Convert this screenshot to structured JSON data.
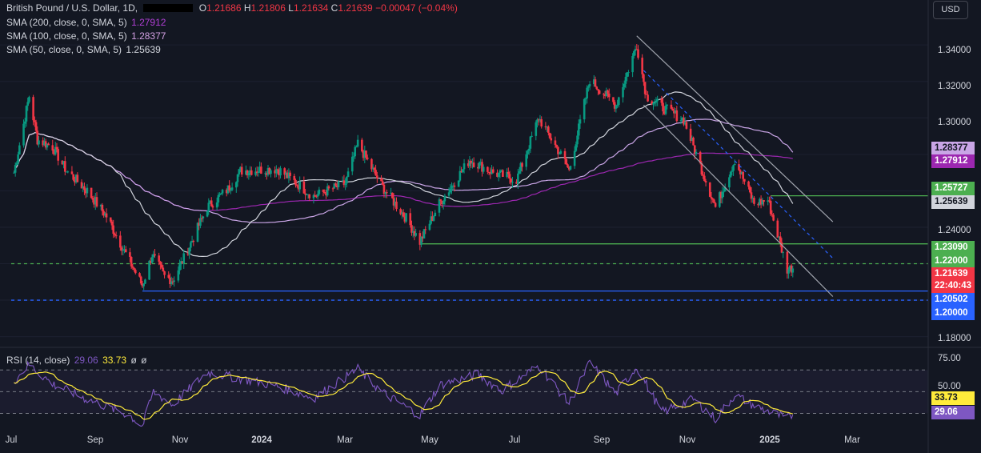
{
  "header": {
    "symbol": "British Pound / U.S. Dollar, 1D,",
    "o_label": "O",
    "o": "1.21686",
    "h_label": "H",
    "h": "1.21806",
    "l_label": "L",
    "l": "1.21634",
    "c_label": "C",
    "c": "1.21639",
    "change": "−0.00047 (−0.04%)"
  },
  "sma_legend": [
    {
      "label": "SMA (200, close, 0, SMA, 5)",
      "value": "1.27912",
      "color": "#b13fd6"
    },
    {
      "label": "SMA (100, close, 0, SMA, 5)",
      "value": "1.28377",
      "color": "#d3a0e3"
    },
    {
      "label": "SMA (50, close, 0, SMA, 5)",
      "value": "1.25639",
      "color": "#d1d4dc"
    }
  ],
  "currency_button": "USD",
  "price_axis": [
    "1.34000",
    "1.32000",
    "1.30000",
    "1.24000",
    "1.18000"
  ],
  "price_tags": [
    {
      "text": "1.28377",
      "bg": "#c9a5e6",
      "fg": "#131722"
    },
    {
      "text": "1.27912",
      "bg": "#9c27b0",
      "fg": "#ffffff"
    },
    {
      "text": "1.25727",
      "bg": "#4caf50",
      "fg": "#ffffff"
    },
    {
      "text": "1.25639",
      "bg": "#d1d4dc",
      "fg": "#131722"
    },
    {
      "text": "1.23090",
      "bg": "#4caf50",
      "fg": "#ffffff"
    },
    {
      "text": "1.22000",
      "bg": "#4caf50",
      "fg": "#ffffff"
    },
    {
      "text": "1.21639",
      "bg": "#f23645",
      "fg": "#ffffff"
    },
    {
      "text": "22:40:43",
      "bg": "#f23645",
      "fg": "#ffffff"
    },
    {
      "text": "1.20502",
      "bg": "#2962ff",
      "fg": "#ffffff"
    },
    {
      "text": "1.20000",
      "bg": "#2962ff",
      "fg": "#ffffff"
    }
  ],
  "rsi": {
    "label": "RSI (14, close)",
    "value": "29.06",
    "ma_value": "33.73",
    "extra1": "ø",
    "extra2": "ø",
    "axis": [
      "75.00",
      "50.00"
    ],
    "tags": [
      {
        "text": "33.73",
        "bg": "#ffeb3b",
        "fg": "#131722"
      },
      {
        "text": "29.06",
        "bg": "#7e57c2",
        "fg": "#ffffff"
      }
    ]
  },
  "x_axis": [
    {
      "label": "Jul",
      "bold": false
    },
    {
      "label": "Sep",
      "bold": false
    },
    {
      "label": "Nov",
      "bold": false
    },
    {
      "label": "2024",
      "bold": true
    },
    {
      "label": "Mar",
      "bold": false
    },
    {
      "label": "May",
      "bold": false
    },
    {
      "label": "Jul",
      "bold": false
    },
    {
      "label": "Sep",
      "bold": false
    },
    {
      "label": "Nov",
      "bold": false
    },
    {
      "label": "2025",
      "bold": true
    },
    {
      "label": "Mar",
      "bold": false
    }
  ],
  "chart_data": {
    "type": "candlestick",
    "pair": "GBP/USD",
    "timeframe": "1D",
    "ylim": [
      1.175,
      1.355
    ],
    "close_path": [
      [
        "2023-07-03",
        1.27
      ],
      [
        "2023-07-14",
        1.312
      ],
      [
        "2023-07-20",
        1.288
      ],
      [
        "2023-07-31",
        1.284
      ],
      [
        "2023-08-10",
        1.271
      ],
      [
        "2023-08-25",
        1.26
      ],
      [
        "2023-09-08",
        1.246
      ],
      [
        "2023-09-25",
        1.221
      ],
      [
        "2023-10-04",
        1.208
      ],
      [
        "2023-10-11",
        1.225
      ],
      [
        "2023-10-20",
        1.213
      ],
      [
        "2023-10-26",
        1.211
      ],
      [
        "2023-11-03",
        1.223
      ],
      [
        "2023-11-20",
        1.251
      ],
      [
        "2023-12-05",
        1.261
      ],
      [
        "2023-12-14",
        1.271
      ],
      [
        "2024-01-10",
        1.272
      ],
      [
        "2024-02-05",
        1.257
      ],
      [
        "2024-02-28",
        1.264
      ],
      [
        "2024-03-08",
        1.286
      ],
      [
        "2024-03-25",
        1.263
      ],
      [
        "2024-04-12",
        1.245
      ],
      [
        "2024-04-22",
        1.232
      ],
      [
        "2024-05-06",
        1.253
      ],
      [
        "2024-05-28",
        1.277
      ],
      [
        "2024-06-14",
        1.27
      ],
      [
        "2024-07-01",
        1.266
      ],
      [
        "2024-07-17",
        1.3
      ],
      [
        "2024-08-05",
        1.276
      ],
      [
        "2024-08-08",
        1.271
      ],
      [
        "2024-08-23",
        1.321
      ],
      [
        "2024-09-11",
        1.307
      ],
      [
        "2024-09-26",
        1.34
      ],
      [
        "2024-10-03",
        1.312
      ],
      [
        "2024-10-14",
        1.306
      ],
      [
        "2024-10-30",
        1.299
      ],
      [
        "2024-11-22",
        1.251
      ],
      [
        "2024-12-06",
        1.277
      ],
      [
        "2024-12-20",
        1.253
      ],
      [
        "2024-12-30",
        1.255
      ],
      [
        "2025-01-13",
        1.217
      ],
      [
        "2025-01-17",
        1.218
      ]
    ],
    "moving_averages": [
      {
        "name": "SMA 200",
        "last": 1.27912
      },
      {
        "name": "SMA 100",
        "last": 1.28377
      },
      {
        "name": "SMA 50",
        "last": 1.25639
      }
    ],
    "levels": [
      {
        "value": 1.25727,
        "style": "solid",
        "color": "#4caf50"
      },
      {
        "value": 1.2309,
        "style": "solid",
        "color": "#4caf50"
      },
      {
        "value": 1.22,
        "style": "dashed",
        "color": "#4caf50"
      },
      {
        "value": 1.20502,
        "style": "solid",
        "color": "#2962ff"
      },
      {
        "value": 1.2,
        "style": "dashed",
        "color": "#2962ff"
      }
    ],
    "channel": {
      "upper": [
        [
          "2024-09-26",
          1.345
        ],
        [
          "2025-02-15",
          1.243
        ]
      ],
      "lower": [
        [
          "2024-10-01",
          1.307
        ],
        [
          "2025-02-15",
          1.202
        ]
      ],
      "mid": [
        [
          "2024-10-01",
          1.326
        ],
        [
          "2025-02-15",
          1.223
        ]
      ]
    },
    "rsi_ylim": [
      20,
      85
    ],
    "rsi_path": [
      [
        "2023-07-03",
        60
      ],
      [
        "2023-07-14",
        75
      ],
      [
        "2023-07-31",
        57
      ],
      [
        "2023-08-25",
        43
      ],
      [
        "2023-09-25",
        28
      ],
      [
        "2023-10-04",
        18
      ],
      [
        "2023-10-12",
        50
      ],
      [
        "2023-10-26",
        38
      ],
      [
        "2023-11-20",
        68
      ],
      [
        "2023-12-14",
        62
      ],
      [
        "2024-01-10",
        55
      ],
      [
        "2024-02-05",
        44
      ],
      [
        "2024-03-08",
        71
      ],
      [
        "2024-03-25",
        50
      ],
      [
        "2024-04-22",
        28
      ],
      [
        "2024-05-06",
        56
      ],
      [
        "2024-06-03",
        66
      ],
      [
        "2024-06-20",
        51
      ],
      [
        "2024-07-17",
        74
      ],
      [
        "2024-08-08",
        39
      ],
      [
        "2024-08-23",
        77
      ],
      [
        "2024-09-11",
        48
      ],
      [
        "2024-09-26",
        73
      ],
      [
        "2024-10-14",
        31
      ],
      [
        "2024-11-06",
        43
      ],
      [
        "2024-11-22",
        25
      ],
      [
        "2024-12-06",
        47
      ],
      [
        "2024-12-20",
        37
      ],
      [
        "2025-01-13",
        25
      ],
      [
        "2025-01-17",
        29.06
      ]
    ],
    "rsi_ma_last": 33.73
  }
}
